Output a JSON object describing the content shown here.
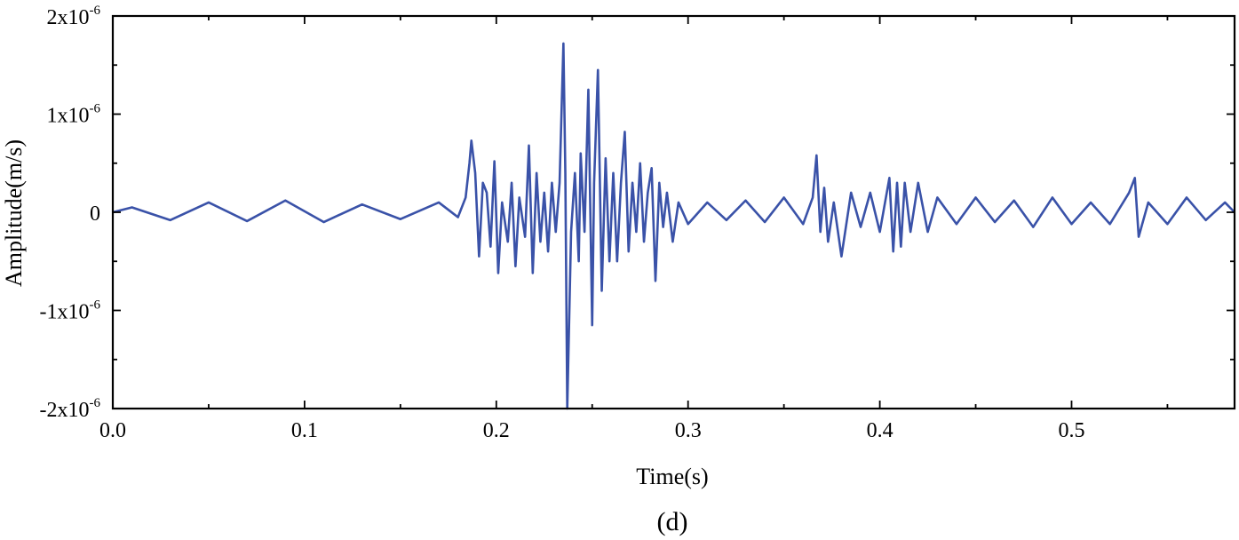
{
  "chart_data": {
    "type": "line",
    "panel_label": "(d)",
    "xlabel": "Time(s)",
    "ylabel": "Amplitude(m/s)",
    "xlim": [
      0.0,
      0.585
    ],
    "ylim": [
      -2e-06,
      2e-06
    ],
    "x_ticks": [
      0.0,
      0.1,
      0.2,
      0.3,
      0.4,
      0.5
    ],
    "x_tick_labels": [
      "0.0",
      "0.1",
      "0.2",
      "0.3",
      "0.4",
      "0.5"
    ],
    "y_ticks": [
      {
        "value": 2e-06,
        "mantissa": "2x10",
        "exponent": "-6"
      },
      {
        "value": 1e-06,
        "mantissa": "1x10",
        "exponent": "-6"
      },
      {
        "value": 0,
        "mantissa": "0",
        "exponent": ""
      },
      {
        "value": -1e-06,
        "mantissa": "-1x10",
        "exponent": "-6"
      },
      {
        "value": -2e-06,
        "mantissa": "-2x10",
        "exponent": "-6"
      }
    ],
    "grid": false,
    "line_color": "#3a52a8",
    "series": [
      {
        "name": "",
        "points": [
          [
            0.0,
            0.0
          ],
          [
            0.01,
            5e-08
          ],
          [
            0.03,
            -8e-08
          ],
          [
            0.05,
            1e-07
          ],
          [
            0.07,
            -9e-08
          ],
          [
            0.09,
            1.2e-07
          ],
          [
            0.11,
            -1e-07
          ],
          [
            0.13,
            8e-08
          ],
          [
            0.15,
            -7e-08
          ],
          [
            0.17,
            1e-07
          ],
          [
            0.18,
            -5e-08
          ],
          [
            0.184,
            1.5e-07
          ],
          [
            0.186,
            5e-07
          ],
          [
            0.187,
            7.3e-07
          ],
          [
            0.189,
            4e-07
          ],
          [
            0.191,
            -4.5e-07
          ],
          [
            0.193,
            3e-07
          ],
          [
            0.195,
            2e-07
          ],
          [
            0.197,
            -3.5e-07
          ],
          [
            0.199,
            5.2e-07
          ],
          [
            0.201,
            -6.2e-07
          ],
          [
            0.203,
            1e-07
          ],
          [
            0.206,
            -3e-07
          ],
          [
            0.208,
            3e-07
          ],
          [
            0.21,
            -5.5e-07
          ],
          [
            0.212,
            1.5e-07
          ],
          [
            0.215,
            -2.5e-07
          ],
          [
            0.217,
            6.8e-07
          ],
          [
            0.219,
            -6.2e-07
          ],
          [
            0.221,
            4e-07
          ],
          [
            0.223,
            -3e-07
          ],
          [
            0.225,
            2e-07
          ],
          [
            0.227,
            -4e-07
          ],
          [
            0.229,
            3e-07
          ],
          [
            0.231,
            -2e-07
          ],
          [
            0.233,
            3e-07
          ],
          [
            0.235,
            1.72e-06
          ],
          [
            0.236,
            4e-07
          ],
          [
            0.237,
            -2e-06
          ],
          [
            0.239,
            -2e-07
          ],
          [
            0.241,
            4e-07
          ],
          [
            0.243,
            -5e-07
          ],
          [
            0.244,
            6e-07
          ],
          [
            0.246,
            -2e-07
          ],
          [
            0.248,
            1.25e-06
          ],
          [
            0.25,
            -1.15e-06
          ],
          [
            0.251,
            3e-07
          ],
          [
            0.253,
            1.45e-06
          ],
          [
            0.255,
            -8e-07
          ],
          [
            0.257,
            5.5e-07
          ],
          [
            0.259,
            -5e-07
          ],
          [
            0.261,
            4e-07
          ],
          [
            0.263,
            -5e-07
          ],
          [
            0.265,
            3e-07
          ],
          [
            0.267,
            8.2e-07
          ],
          [
            0.269,
            -4e-07
          ],
          [
            0.271,
            3e-07
          ],
          [
            0.273,
            -2e-07
          ],
          [
            0.275,
            5e-07
          ],
          [
            0.277,
            -3e-07
          ],
          [
            0.279,
            2e-07
          ],
          [
            0.281,
            4.5e-07
          ],
          [
            0.283,
            -7e-07
          ],
          [
            0.285,
            3e-07
          ],
          [
            0.287,
            -1.5e-07
          ],
          [
            0.289,
            2e-07
          ],
          [
            0.292,
            -3e-07
          ],
          [
            0.295,
            1e-07
          ],
          [
            0.3,
            -1.2e-07
          ],
          [
            0.31,
            1e-07
          ],
          [
            0.32,
            -8e-08
          ],
          [
            0.33,
            1.2e-07
          ],
          [
            0.34,
            -1e-07
          ],
          [
            0.35,
            1.5e-07
          ],
          [
            0.36,
            -1.2e-07
          ],
          [
            0.365,
            1.5e-07
          ],
          [
            0.367,
            5.8e-07
          ],
          [
            0.369,
            -2e-07
          ],
          [
            0.371,
            2.5e-07
          ],
          [
            0.373,
            -3e-07
          ],
          [
            0.376,
            1e-07
          ],
          [
            0.38,
            -4.5e-07
          ],
          [
            0.385,
            2e-07
          ],
          [
            0.39,
            -1.5e-07
          ],
          [
            0.395,
            2e-07
          ],
          [
            0.4,
            -2e-07
          ],
          [
            0.405,
            3.5e-07
          ],
          [
            0.407,
            -4e-07
          ],
          [
            0.409,
            3e-07
          ],
          [
            0.411,
            -3.5e-07
          ],
          [
            0.413,
            3e-07
          ],
          [
            0.416,
            -2e-07
          ],
          [
            0.42,
            3e-07
          ],
          [
            0.425,
            -2e-07
          ],
          [
            0.43,
            1.5e-07
          ],
          [
            0.44,
            -1.2e-07
          ],
          [
            0.45,
            1.5e-07
          ],
          [
            0.46,
            -1e-07
          ],
          [
            0.47,
            1.2e-07
          ],
          [
            0.48,
            -1.5e-07
          ],
          [
            0.49,
            1.5e-07
          ],
          [
            0.5,
            -1.2e-07
          ],
          [
            0.51,
            1e-07
          ],
          [
            0.52,
            -1.2e-07
          ],
          [
            0.53,
            2e-07
          ],
          [
            0.533,
            3.5e-07
          ],
          [
            0.535,
            -2.5e-07
          ],
          [
            0.54,
            1e-07
          ],
          [
            0.55,
            -1.2e-07
          ],
          [
            0.56,
            1.5e-07
          ],
          [
            0.57,
            -8e-08
          ],
          [
            0.58,
            1e-07
          ],
          [
            0.585,
            0.0
          ]
        ]
      }
    ]
  }
}
